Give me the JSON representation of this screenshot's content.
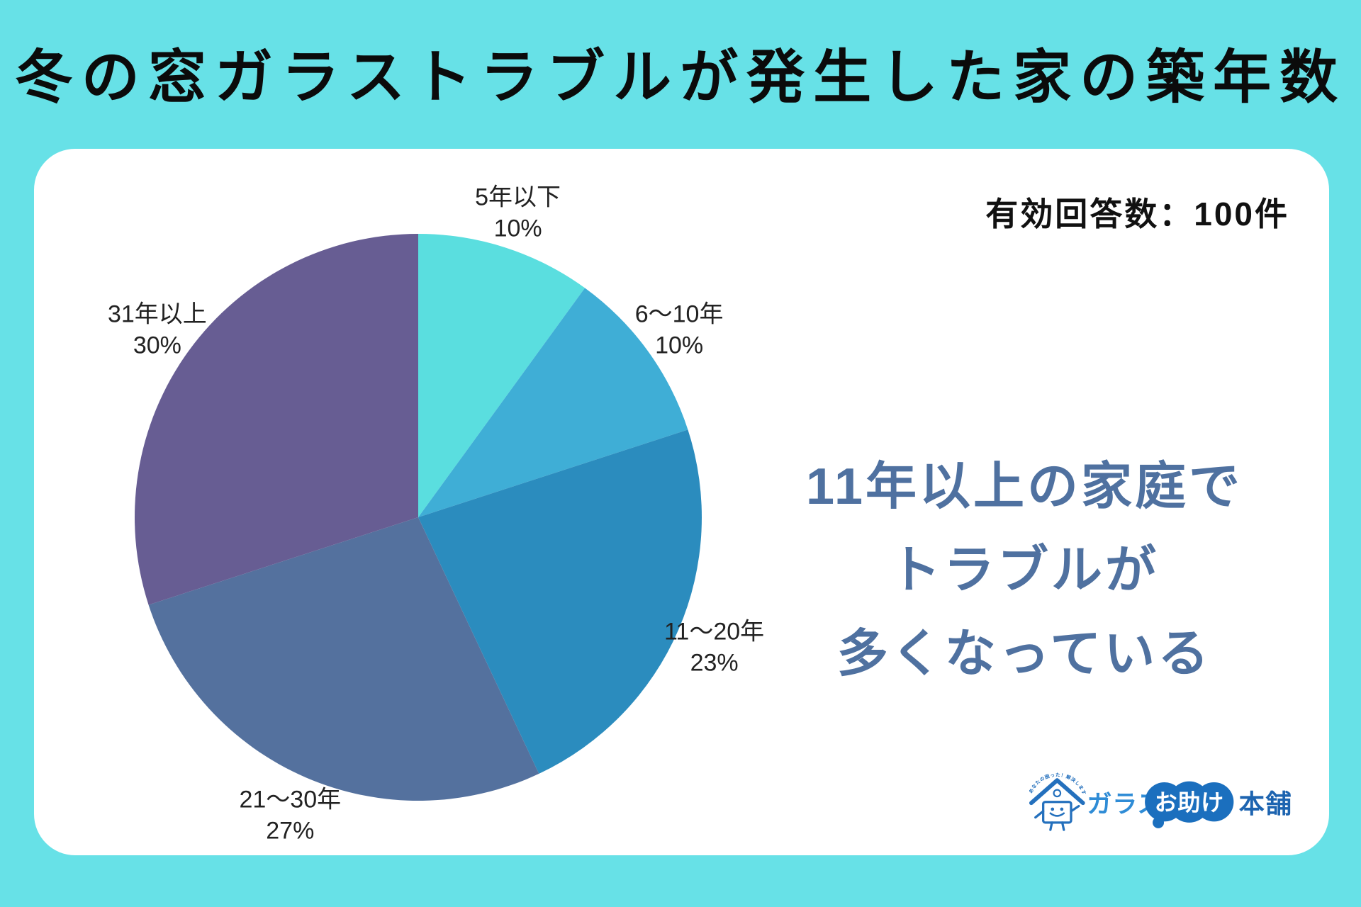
{
  "page": {
    "background_color": "#67E1E7",
    "card_color": "#FFFFFF"
  },
  "header": {
    "title": "冬の窓ガラストラブルが発生した家の築年数",
    "title_color": "#0B0B0B"
  },
  "card": {
    "response_count": "有効回答数：100件",
    "callout": {
      "lines": [
        "11年以上の家庭で",
        "トラブルが",
        "多くなっている"
      ],
      "color": "#4F71A0"
    }
  },
  "chart_data": {
    "type": "pie",
    "title": "冬の窓ガラストラブルが発生した家の築年数",
    "categories": [
      "5年以下",
      "6〜10年",
      "11〜20年",
      "21〜30年",
      "31年以上"
    ],
    "values": [
      10,
      10,
      23,
      27,
      30
    ],
    "unit": "%",
    "total_label": "有効回答数：100件",
    "colors": [
      "#5ADEDF",
      "#3FAED6",
      "#2B8CBE",
      "#54719E",
      "#675D93"
    ],
    "label_color": "#222222",
    "start_angle_deg": 0,
    "direction": "clockwise",
    "legend_position": "none",
    "labels_outside": true
  },
  "logo": {
    "tagline": "あなたの困った！解決します",
    "part1": "ガラス",
    "part2": "お助け",
    "part3": "本舗",
    "part1_color": "#2F8CD6",
    "cloud_color": "#1B6FBE",
    "part2_color": "#FFFFFF",
    "part3_color": "#1D64B0",
    "mascot_color": "#2470BD"
  }
}
